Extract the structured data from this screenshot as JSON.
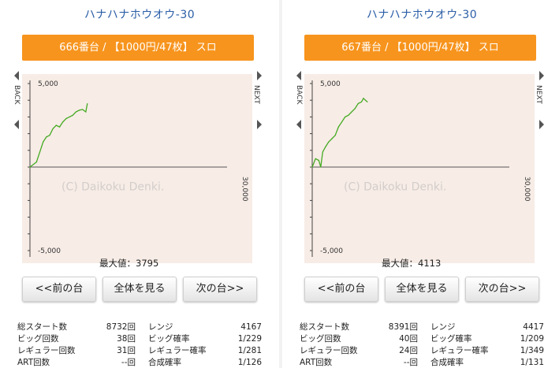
{
  "panels": [
    {
      "title": "ハナハナホウオウ-30",
      "machine_label": "666番台 / 【1000円/47枚】 スロ",
      "buttons": {
        "prev": "<<前の台",
        "all": "全体を見る",
        "next": "次の台>>"
      },
      "nav": {
        "back": "BACK",
        "next": "NEXT"
      },
      "stats": [
        {
          "left_label": "総スタート数",
          "left_value": "8732回",
          "right_label": "レンジ",
          "right_value": "4167"
        },
        {
          "left_label": "ビッグ回数",
          "left_value": "38回",
          "right_label": "ビッグ確率",
          "right_value": "1/229"
        },
        {
          "left_label": "レギュラー回数",
          "left_value": "31回",
          "right_label": "レギュラー確率",
          "right_value": "1/281"
        },
        {
          "left_label": "ART回数",
          "left_value": "--回",
          "right_label": "合成確率",
          "right_value": "1/126"
        }
      ]
    },
    {
      "title": "ハナハナホウオウ-30",
      "machine_label": "667番台 / 【1000円/47枚】 スロ",
      "buttons": {
        "prev": "<<前の台",
        "all": "全体を見る",
        "next": "次の台>>"
      },
      "nav": {
        "back": "BACK",
        "next": "NEXT"
      },
      "stats": [
        {
          "left_label": "総スタート数",
          "left_value": "8391回",
          "right_label": "レンジ",
          "right_value": "4417"
        },
        {
          "left_label": "ビッグ回数",
          "left_value": "40回",
          "right_label": "ビッグ確率",
          "right_value": "1/209"
        },
        {
          "left_label": "レギュラー回数",
          "left_value": "24回",
          "right_label": "レギュラー確率",
          "right_value": "1/349"
        },
        {
          "left_label": "ART回数",
          "left_value": "--回",
          "right_label": "合成確率",
          "right_value": "1/131"
        }
      ]
    }
  ],
  "chart_data": [
    {
      "type": "line",
      "ylim": [
        -5000,
        5000
      ],
      "xlim": [
        0,
        30000
      ],
      "yticks": [
        "5,000",
        "-5,000"
      ],
      "xtick": "30,000",
      "watermark": "(C) Daikoku Denki.",
      "max_label": "最大値：3795",
      "line_color": "#44aa22",
      "x": [
        0,
        1000,
        1500,
        2000,
        2500,
        3000,
        3500,
        4000,
        4500,
        5000,
        5500,
        6000,
        6500,
        7000,
        7500,
        8000,
        8500,
        8732
      ],
      "y": [
        0,
        300,
        900,
        1500,
        1800,
        1900,
        2300,
        2500,
        2400,
        2700,
        2900,
        3000,
        3100,
        3300,
        3400,
        3450,
        3300,
        3795
      ]
    },
    {
      "type": "line",
      "ylim": [
        -5000,
        5000
      ],
      "xlim": [
        0,
        30000
      ],
      "yticks": [
        "5,000",
        "-5,000"
      ],
      "xtick": "30,000",
      "watermark": "(C) Daikoku Denki.",
      "max_label": "最大値：4113",
      "line_color": "#44aa22",
      "x": [
        0,
        500,
        1000,
        1300,
        1600,
        2000,
        2500,
        3000,
        3500,
        4000,
        4500,
        5000,
        5500,
        6000,
        6500,
        7000,
        7500,
        7800,
        8100,
        8391
      ],
      "y": [
        0,
        500,
        400,
        0,
        900,
        1200,
        1500,
        1700,
        1900,
        2400,
        2700,
        3000,
        3100,
        3300,
        3500,
        3800,
        3900,
        4113,
        4000,
        3900
      ]
    }
  ]
}
